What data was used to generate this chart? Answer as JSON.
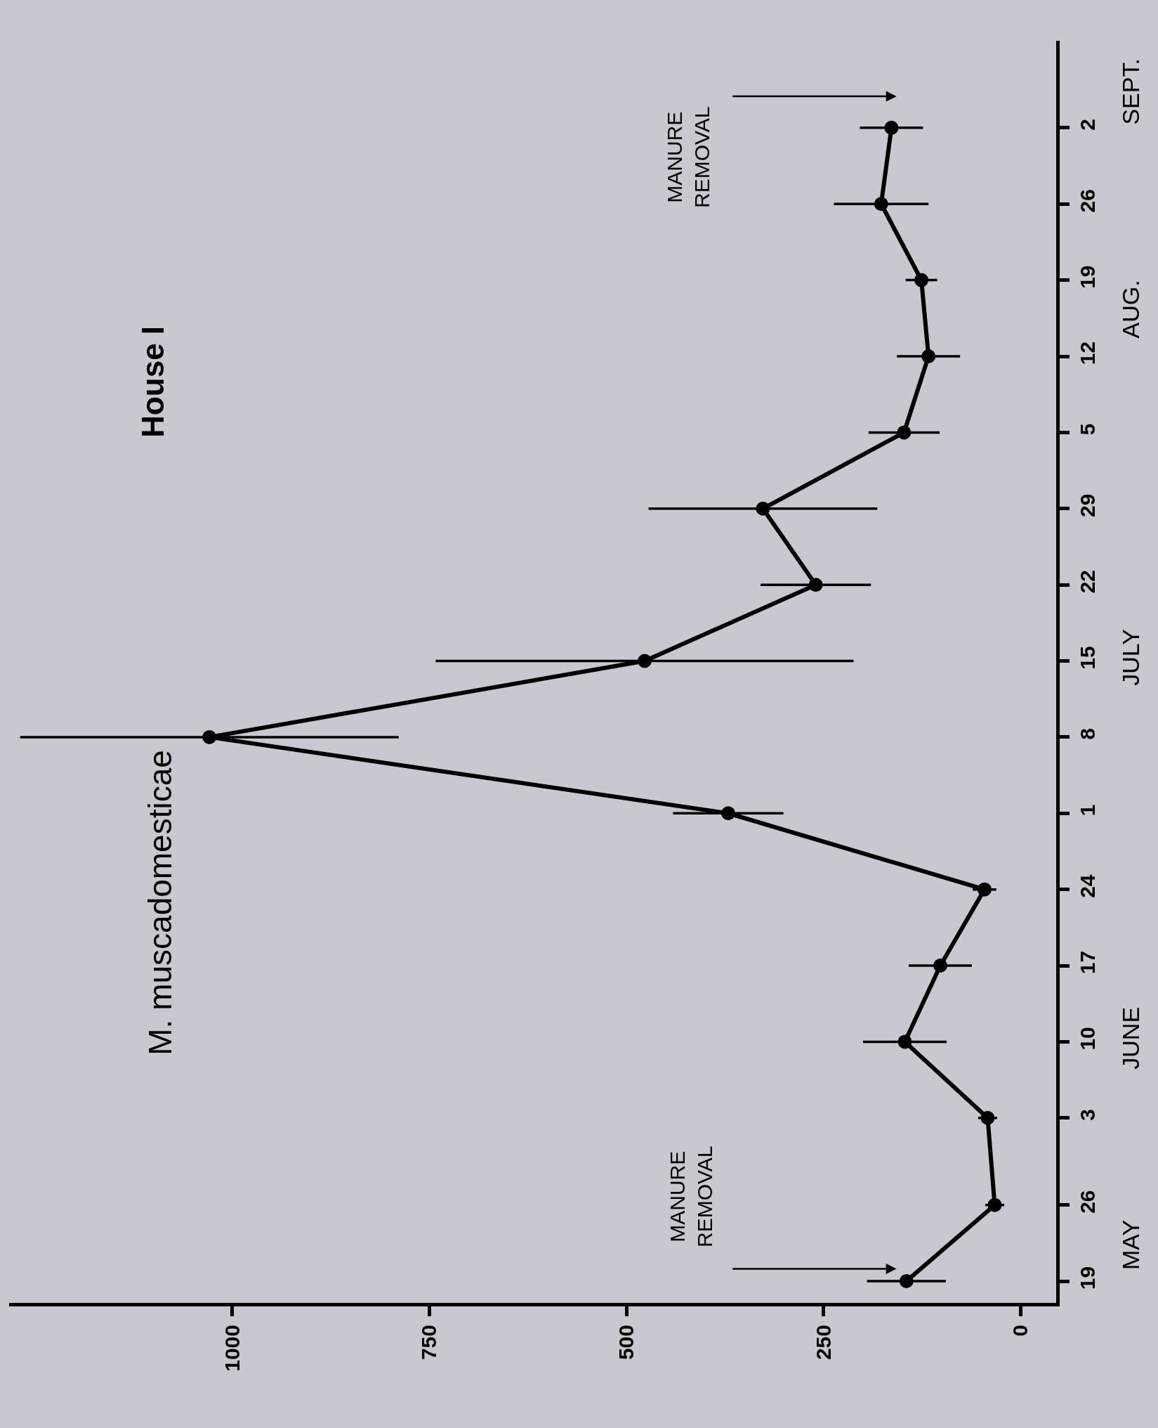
{
  "chart_data": {
    "type": "line",
    "orientation": "horizontal",
    "title": "House I",
    "marker": "circle",
    "line_style": "solid",
    "grid": false,
    "x": [
      "--05-19",
      "--05-26",
      "--06-03",
      "--06-10",
      "--06-17",
      "--06-24",
      "--07-01",
      "--07-08",
      "--07-15",
      "--07-22",
      "--07-29",
      "--08-05",
      "--08-12",
      "--08-19",
      "--08-26",
      "--09-02"
    ],
    "series": [
      {
        "color": "#000000",
        "values": [
          145,
          33,
          42,
          147,
          102,
          46,
          371,
          1029,
          477,
          260,
          327,
          148,
          117,
          126,
          177,
          164
        ],
        "errors": [
          50,
          12,
          12,
          53,
          40,
          15,
          70,
          240,
          265,
          70,
          145,
          45,
          40,
          20,
          60,
          40
        ]
      }
    ],
    "xlim": [
      1283,
      -45
    ],
    "xticks": [
      0,
      250,
      500,
      750,
      1000
    ],
    "ylim": [
      "--05-17",
      "--09-10"
    ],
    "yticks": [
      {
        "value": "--05-19",
        "label": "19"
      },
      {
        "value": "--05-26",
        "label": "26"
      },
      {
        "value": "--06-03",
        "label": "3"
      },
      {
        "value": "--06-10",
        "label": "10"
      },
      {
        "value": "--06-17",
        "label": "17"
      },
      {
        "value": "--06-24",
        "label": "24"
      },
      {
        "value": "--07-01",
        "label": "1"
      },
      {
        "value": "--07-08",
        "label": "8"
      },
      {
        "value": "--07-15",
        "label": "15"
      },
      {
        "value": "--07-22",
        "label": "22"
      },
      {
        "value": "--07-29",
        "label": "29"
      },
      {
        "value": "--08-05",
        "label": "5"
      },
      {
        "value": "--08-12",
        "label": "12"
      },
      {
        "value": "--08-19",
        "label": "19"
      },
      {
        "value": "--08-26",
        "label": "26"
      },
      {
        "value": "--09-02",
        "label": "2"
      }
    ],
    "y2lim": [
      "--05-17",
      "--09-10"
    ],
    "y2ticks": [
      {
        "value": "--05-22",
        "label": "MAY"
      },
      {
        "value": "--06-10",
        "label": "JUNE"
      },
      {
        "value": "--07-15",
        "label": "JULY"
      },
      {
        "value": "--08-16",
        "label": "AUG."
      },
      {
        "value": "--09-05",
        "label": "SEPT."
      }
    ],
    "annotations": [
      "M. muscadomesticae",
      "MANURE\nREMOVAL",
      "MANURE\nREMOVAL"
    ]
  }
}
